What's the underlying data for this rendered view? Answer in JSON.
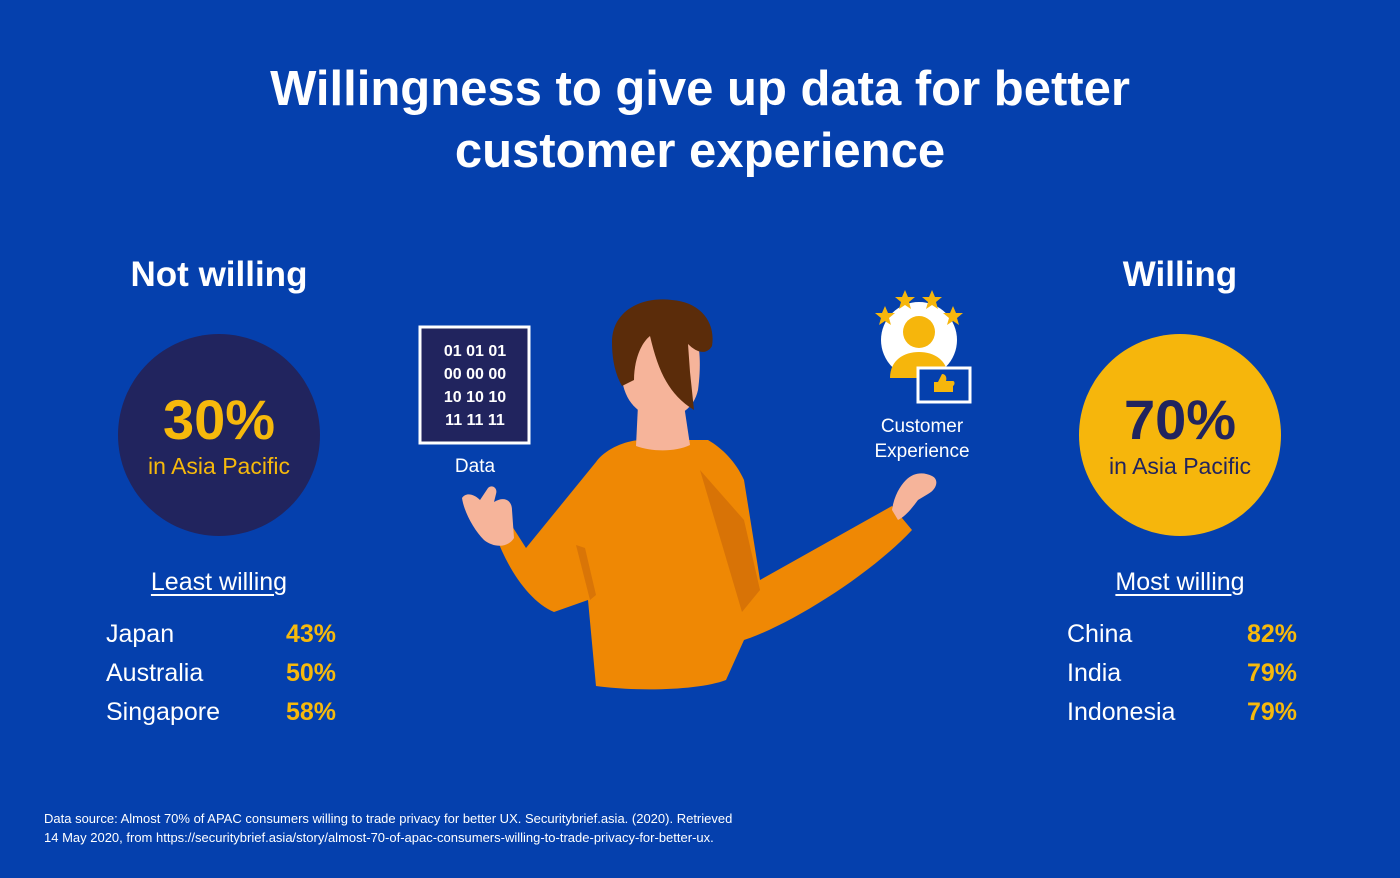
{
  "title": {
    "line1": "Willingness to give up data for better",
    "line2": "customer experience"
  },
  "not_willing": {
    "heading": "Not willing",
    "percent": "30%",
    "region": "in Asia Pacific",
    "list_heading": "Least willing",
    "rows": [
      {
        "country": "Japan",
        "value": "43%"
      },
      {
        "country": "Australia",
        "value": "50%"
      },
      {
        "country": "Singapore",
        "value": "58%"
      }
    ]
  },
  "willing": {
    "heading": "Willing",
    "percent": "70%",
    "region": "in Asia Pacific",
    "list_heading": "Most willing",
    "rows": [
      {
        "country": "China",
        "value": "82%"
      },
      {
        "country": "India",
        "value": "79%"
      },
      {
        "country": "Indonesia",
        "value": "79%"
      }
    ]
  },
  "illustration": {
    "data_grid": [
      "01 01 01",
      "00 00 00",
      "10 10 10",
      "11 11 11"
    ],
    "data_label": "Data",
    "cx_label_line1": "Customer",
    "cx_label_line2": "Experience"
  },
  "source": {
    "line1": "Data source: Almost 70% of APAC consumers willing to trade privacy for better UX. Securitybrief.asia. (2020). Retrieved",
    "line2": "14 May 2020, from https://securitybrief.asia/story/almost-70-of-apac-consumers-willing-to-trade-privacy-for-better-ux."
  },
  "colors": {
    "background": "#0540ad",
    "navy": "#21245e",
    "gold": "#f6b60c",
    "shirt": "#ef8804",
    "skin": "#f6b49a",
    "hair": "#5b2c0a"
  }
}
